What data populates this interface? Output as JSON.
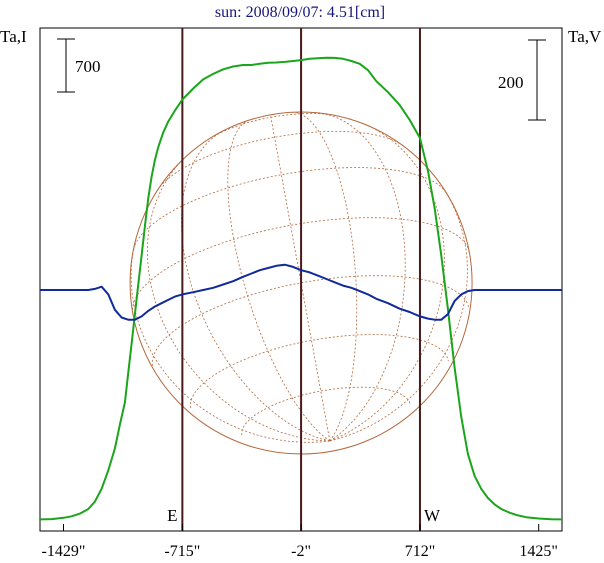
{
  "chart_data": {
    "type": "line",
    "title": "sun: 2008/09/07: 4.51[cm]",
    "left_axis_label": "Ta,I",
    "right_axis_label": "Ta,V",
    "left_scale_bar": "700",
    "right_scale_bar": "200",
    "x_ticks": [
      "-1429\"",
      "-715\"",
      "-2\"",
      "712\"",
      "1425\""
    ],
    "x_tick_values": [
      -1429,
      -715,
      -2,
      712,
      1425
    ],
    "xlim": [
      -1570,
      1565
    ],
    "limb_markers": [
      {
        "label": "E",
        "x": -715
      },
      {
        "label": "W",
        "x": 712
      }
    ],
    "center_marker_x": -2,
    "legend": "none",
    "grid": false,
    "colors": {
      "intensity": "#1aa51a",
      "polarization": "#102a9c",
      "solar_disk": "#b5683b",
      "markers": "#4a1a1a",
      "title": "#17177a"
    },
    "series": [
      {
        "key": "intensity",
        "x": [
          -1570,
          -1500,
          -1429,
          -1380,
          -1330,
          -1280,
          -1240,
          -1200,
          -1160,
          -1120,
          -1090,
          -1060,
          -1040,
          -1020,
          -1000,
          -980,
          -960,
          -940,
          -920,
          -900,
          -880,
          -860,
          -830,
          -800,
          -760,
          -715,
          -650,
          -590,
          -530,
          -470,
          -410,
          -350,
          -300,
          -250,
          -200,
          -150,
          -100,
          -50,
          -2,
          50,
          100,
          150,
          200,
          250,
          300,
          350,
          400,
          450,
          520,
          590,
          650,
          712,
          760,
          800,
          840,
          880,
          920,
          960,
          1000,
          1040,
          1080,
          1120,
          1160,
          1200,
          1250,
          1300,
          1350,
          1425,
          1500,
          1565
        ],
        "y": [
          3,
          5,
          12,
          20,
          35,
          60,
          100,
          170,
          270,
          390,
          520,
          640,
          800,
          960,
          1120,
          1280,
          1440,
          1600,
          1750,
          1870,
          1960,
          2030,
          2110,
          2170,
          2230,
          2290,
          2350,
          2400,
          2430,
          2455,
          2470,
          2478,
          2478,
          2485,
          2490,
          2492,
          2495,
          2500,
          2505,
          2512,
          2515,
          2518,
          2517,
          2512,
          2500,
          2485,
          2450,
          2390,
          2330,
          2260,
          2180,
          2080,
          1900,
          1700,
          1440,
          1150,
          830,
          560,
          360,
          240,
          170,
          120,
          85,
          60,
          40,
          25,
          15,
          8,
          4,
          3
        ]
      },
      {
        "key": "polarization",
        "x": [
          -1570,
          -1500,
          -1429,
          -1380,
          -1330,
          -1280,
          -1240,
          -1200,
          -1160,
          -1120,
          -1080,
          -1040,
          -1000,
          -960,
          -920,
          -880,
          -840,
          -800,
          -760,
          -715,
          -650,
          -590,
          -530,
          -470,
          -410,
          -350,
          -300,
          -250,
          -200,
          -150,
          -100,
          -50,
          -2,
          50,
          100,
          150,
          200,
          250,
          300,
          350,
          400,
          450,
          520,
          590,
          650,
          712,
          760,
          800,
          840,
          880,
          920,
          960,
          1000,
          1040,
          1080,
          1120,
          1160,
          1200,
          1250,
          1300,
          1350,
          1425,
          1500,
          1565
        ],
        "y": [
          0,
          0,
          0,
          0,
          0,
          0,
          1,
          3,
          -4,
          -18,
          -25,
          -27,
          -27,
          -24,
          -19,
          -15,
          -12,
          -9,
          -6,
          -4,
          -2,
          0,
          2,
          5,
          8,
          12,
          15,
          18,
          20,
          22,
          23,
          21,
          18,
          16,
          13,
          10,
          7,
          4,
          2,
          -1,
          -4,
          -8,
          -12,
          -17,
          -20,
          -24,
          -26,
          -27,
          -27,
          -22,
          -10,
          -4,
          -1,
          0,
          0,
          0,
          0,
          0,
          0,
          0,
          0,
          0,
          0,
          0
        ]
      }
    ]
  }
}
